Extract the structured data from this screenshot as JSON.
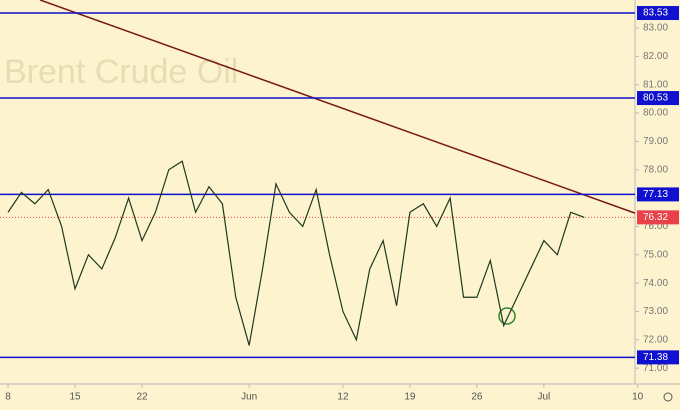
{
  "chart_data": {
    "type": "line",
    "watermark": "Brent Crude Oil",
    "x": [
      0,
      1,
      2,
      3,
      4,
      5,
      6,
      7,
      8,
      9,
      10,
      11,
      12,
      13,
      14,
      15,
      16,
      17,
      18,
      19,
      20,
      21,
      22,
      23,
      24,
      25,
      26,
      27,
      28,
      29,
      30,
      31,
      32,
      33,
      34,
      35,
      36,
      37,
      38,
      39,
      40,
      41,
      42,
      43
    ],
    "series": [
      {
        "color": "#1e3a1e",
        "values": [
          76.5,
          77.2,
          76.8,
          77.3,
          76.0,
          73.8,
          75.0,
          74.5,
          75.6,
          77.0,
          75.5,
          76.5,
          78.0,
          78.3,
          76.5,
          77.4,
          76.8,
          73.5,
          71.8,
          74.5,
          77.5,
          76.5,
          76.0,
          77.3,
          75.0,
          73.0,
          72.0,
          74.5,
          75.5,
          73.2,
          76.5,
          76.8,
          76.0,
          77.0,
          73.5,
          73.5,
          74.8,
          72.5,
          73.5,
          74.5,
          75.5,
          75.0,
          76.5,
          76.32
        ]
      }
    ],
    "levels": [
      {
        "value": 83.53,
        "color": "#1010d0"
      },
      {
        "value": 80.53,
        "color": "#1010d0"
      },
      {
        "value": 77.13,
        "color": "#1010d0"
      },
      {
        "value": 71.38,
        "color": "#1010d0"
      }
    ],
    "last_price": {
      "value": 76.32,
      "color": "#e8414a"
    },
    "trendline": {
      "x": [
        2.4,
        46.8
      ],
      "values": [
        83.99,
        76.47
      ],
      "color": "#7a1a1a"
    },
    "xlim": [
      -0.6,
      46.8
    ],
    "xticks": [
      {
        "value": 0,
        "label": "8"
      },
      {
        "value": 5,
        "label": "15"
      },
      {
        "value": 10,
        "label": "22"
      },
      {
        "value": 18,
        "label": "Jun"
      },
      {
        "value": 25,
        "label": "12"
      },
      {
        "value": 30,
        "label": "19"
      },
      {
        "value": 35,
        "label": "26"
      },
      {
        "value": 40,
        "label": "Jul"
      },
      {
        "value": 47,
        "label": "10"
      }
    ],
    "ylim": [
      70.44,
      83.99
    ],
    "yticks": [
      {
        "value": 71,
        "label": "71.00"
      },
      {
        "value": 72,
        "label": "72.00"
      },
      {
        "value": 73,
        "label": "73.00"
      },
      {
        "value": 74,
        "label": "74.00"
      },
      {
        "value": 75,
        "label": "75.00"
      },
      {
        "value": 76,
        "label": "76.00"
      },
      {
        "value": 77,
        "label": "77.00"
      },
      {
        "value": 78,
        "label": "78.00"
      },
      {
        "value": 79,
        "label": "79.00"
      },
      {
        "value": 80,
        "label": "80.00"
      },
      {
        "value": 81,
        "label": "81.00"
      },
      {
        "value": 82,
        "label": "82.00"
      },
      {
        "value": 83,
        "label": "83.00"
      }
    ]
  }
}
